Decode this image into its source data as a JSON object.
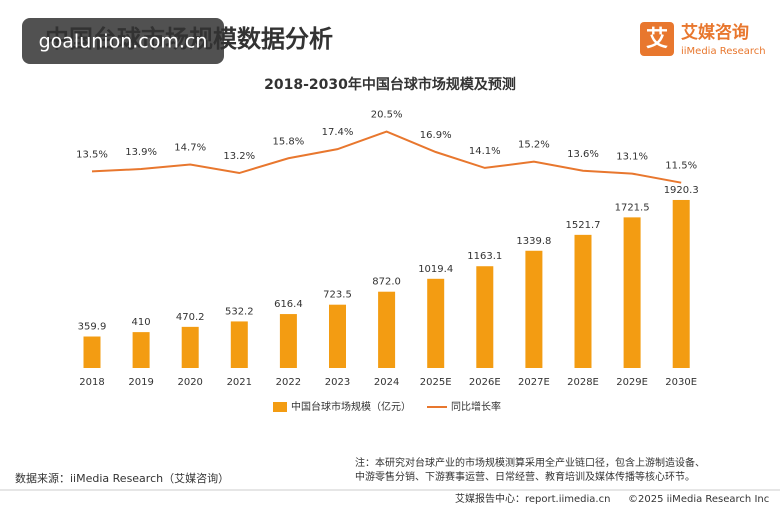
{
  "header": {
    "title": "中国台球市场规模数据分析",
    "watermark": "goalunion.com.cn",
    "logo_mark": "艾",
    "logo_name": "艾媒咨询",
    "logo_sub": "iiMedia Research"
  },
  "chart_data": {
    "type": "bar",
    "title": "2018-2030年中国台球市场规模及预测",
    "categories": [
      "2018",
      "2019",
      "2020",
      "2021",
      "2022",
      "2023",
      "2024",
      "2025E",
      "2026E",
      "2027E",
      "2028E",
      "2029E",
      "2030E"
    ],
    "series": [
      {
        "name": "中国台球市场规模（亿元）",
        "type": "bar",
        "color": "#f39c12",
        "values": [
          359.9,
          410,
          470.2,
          532.2,
          616.4,
          723.5,
          872.0,
          1019.4,
          1163.1,
          1339.8,
          1521.7,
          1721.5,
          1920.3
        ],
        "value_labels": [
          "359.9",
          "410",
          "470.2",
          "532.2",
          "616.4",
          "723.5",
          "872.0",
          "1019.4",
          "1163.1",
          "1339.8",
          "1521.7",
          "1721.5",
          "1920.3"
        ]
      },
      {
        "name": "同比增长率",
        "type": "line",
        "axis": "y2",
        "color": "#e8772e",
        "values": [
          13.5,
          13.9,
          14.7,
          13.2,
          15.8,
          17.4,
          20.5,
          16.9,
          14.1,
          15.2,
          13.6,
          13.1,
          11.5
        ],
        "value_labels": [
          "13.5%",
          "13.9%",
          "14.7%",
          "13.2%",
          "15.8%",
          "17.4%",
          "20.5%",
          "16.9%",
          "14.1%",
          "15.2%",
          "13.6%",
          "13.1%",
          "11.5%"
        ]
      }
    ],
    "ylim": [
      0,
      2000
    ],
    "y2lim": [
      0,
      25
    ],
    "grid": false,
    "legend": "bottom"
  },
  "source": "数据来源：iiMedia Research（艾媒咨询）",
  "note": [
    "注：本研究对台球产业的市场规模测算采用全产业链口径，包含上游制造设备、",
    "中游零售分销、下游赛事运营、日常经营、教育培训及媒体传播等核心环节。"
  ],
  "footer": {
    "left": "艾媒报告中心：report.iimedia.cn",
    "right": "©2025  iiMedia Research  Inc"
  }
}
